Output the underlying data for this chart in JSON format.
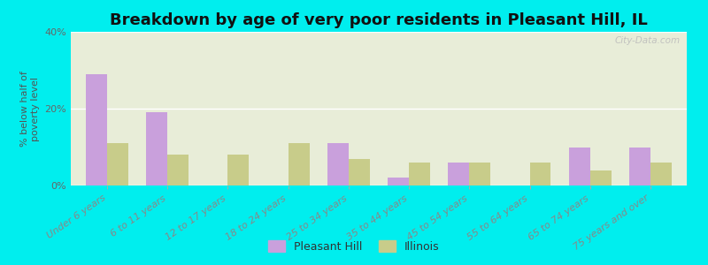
{
  "title": "Breakdown by age of very poor residents in Pleasant Hill, IL",
  "ylabel": "% below half of\npoverty level",
  "categories": [
    "Under 6 years",
    "6 to 11 years",
    "12 to 17 years",
    "18 to 24 years",
    "25 to 34 years",
    "35 to 44 years",
    "45 to 54 years",
    "55 to 64 years",
    "65 to 74 years",
    "75 years and over"
  ],
  "pleasant_hill": [
    29,
    19,
    0,
    0,
    11,
    2,
    6,
    0,
    10,
    10
  ],
  "illinois": [
    11,
    8,
    8,
    11,
    7,
    6,
    6,
    6,
    4,
    6
  ],
  "pleasant_hill_color": "#c9a0dc",
  "illinois_color": "#c8cc8a",
  "background_outer": "#00eeee",
  "background_inner": "#e8edd8",
  "ylim": [
    0,
    40
  ],
  "yticks": [
    0,
    20,
    40
  ],
  "ytick_labels": [
    "0%",
    "20%",
    "40%"
  ],
  "bar_width": 0.35,
  "title_fontsize": 13,
  "axis_label_fontsize": 8,
  "tick_fontsize": 8,
  "legend_label_ph": "Pleasant Hill",
  "legend_label_il": "Illinois",
  "watermark": "City-Data.com"
}
